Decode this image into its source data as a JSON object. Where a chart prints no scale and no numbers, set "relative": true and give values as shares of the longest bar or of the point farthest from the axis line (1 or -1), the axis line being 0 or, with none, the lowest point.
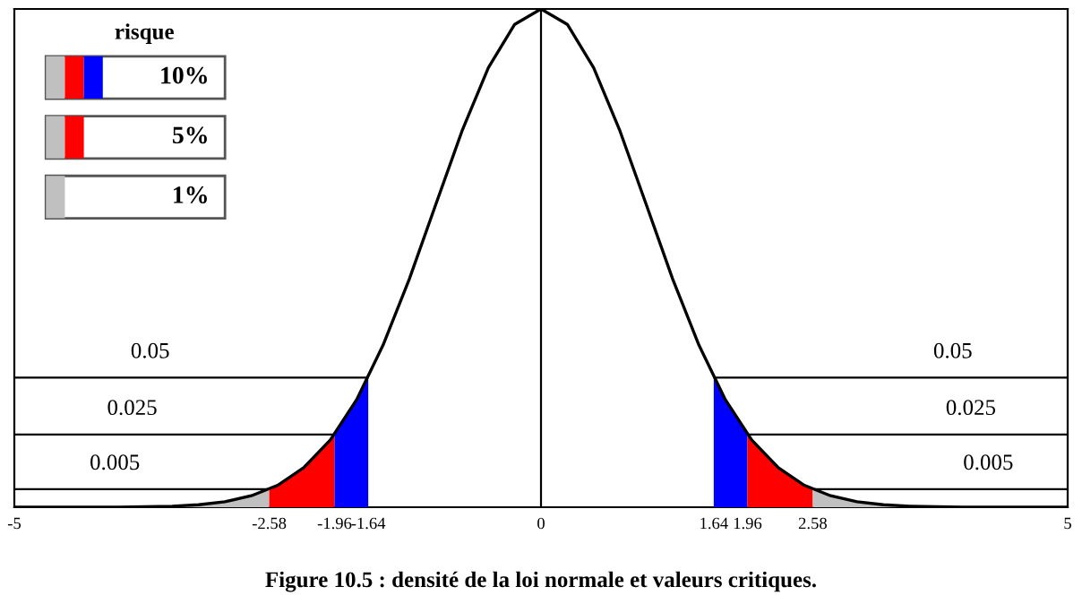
{
  "chart_data": {
    "type": "line",
    "relative": true,
    "title": "Figure 10.5 : densité de la loi normale et valeurs critiques.",
    "legend_title": "risque",
    "annotations": [
      "10%",
      "5%",
      "1%",
      "0.05",
      "0.05",
      "0.025",
      "0.025",
      "0.005",
      "0.005"
    ],
    "x": [
      -5,
      -4.75,
      -4.5,
      -4.25,
      -4,
      -3.75,
      -3.5,
      -3.25,
      -3,
      -2.75,
      -2.5,
      -2.25,
      -2,
      -1.75,
      -1.5,
      -1.25,
      -1,
      -0.75,
      -0.5,
      -0.25,
      0,
      0.25,
      0.5,
      0.75,
      1,
      1.25,
      1.5,
      1.75,
      2,
      2.25,
      2.5,
      2.75,
      3,
      3.25,
      3.5,
      3.75,
      4,
      4.25,
      4.5,
      4.75,
      5
    ],
    "xlim": [
      -5,
      5
    ],
    "xticks": [
      -5,
      -2.58,
      -1.96,
      -1.64,
      0,
      1.64,
      1.96,
      2.58,
      5
    ],
    "series": [
      {
        "color": "#000000",
        "values": [
          0,
          0,
          0,
          0,
          0,
          0.001,
          0.002,
          0.005,
          0.011,
          0.023,
          0.044,
          0.08,
          0.135,
          0.216,
          0.325,
          0.458,
          0.607,
          0.755,
          0.882,
          0.969,
          1,
          0.969,
          0.882,
          0.755,
          0.607,
          0.458,
          0.325,
          0.216,
          0.135,
          0.08,
          0.044,
          0.023,
          0.011,
          0.005,
          0.002,
          0.001,
          0,
          0,
          0,
          0,
          0
        ]
      },
      {
        "type": "area",
        "color": "#c0c0c0",
        "x": [
          -5,
          -4,
          -3.5,
          -3,
          -2.58
        ],
        "values": [
          0,
          0,
          0.002,
          0.011,
          0.036
        ]
      },
      {
        "type": "area",
        "color": "#ff0000",
        "x": [
          -2.58,
          -2.25,
          -1.96
        ],
        "values": [
          0.036,
          0.08,
          0.146
        ]
      },
      {
        "type": "area",
        "color": "#0000ff",
        "x": [
          -1.96,
          -1.75,
          -1.64
        ],
        "values": [
          0.146,
          0.216,
          0.26
        ]
      },
      {
        "type": "area",
        "color": "#0000ff",
        "x": [
          1.64,
          1.75,
          1.96
        ],
        "values": [
          0.26,
          0.216,
          0.146
        ]
      },
      {
        "type": "area",
        "color": "#ff0000",
        "x": [
          1.96,
          2.25,
          2.58
        ],
        "values": [
          0.146,
          0.08,
          0.036
        ]
      },
      {
        "type": "area",
        "color": "#c0c0c0",
        "x": [
          2.58,
          3,
          3.5,
          4,
          5
        ],
        "values": [
          0.036,
          0.011,
          0.002,
          0,
          0
        ]
      }
    ],
    "ref_lines": [
      {
        "axis": "y",
        "value": 0.26
      },
      {
        "axis": "y",
        "value": 0.146
      },
      {
        "axis": "y",
        "value": 0.036
      },
      {
        "axis": "x",
        "value": 0
      }
    ]
  }
}
